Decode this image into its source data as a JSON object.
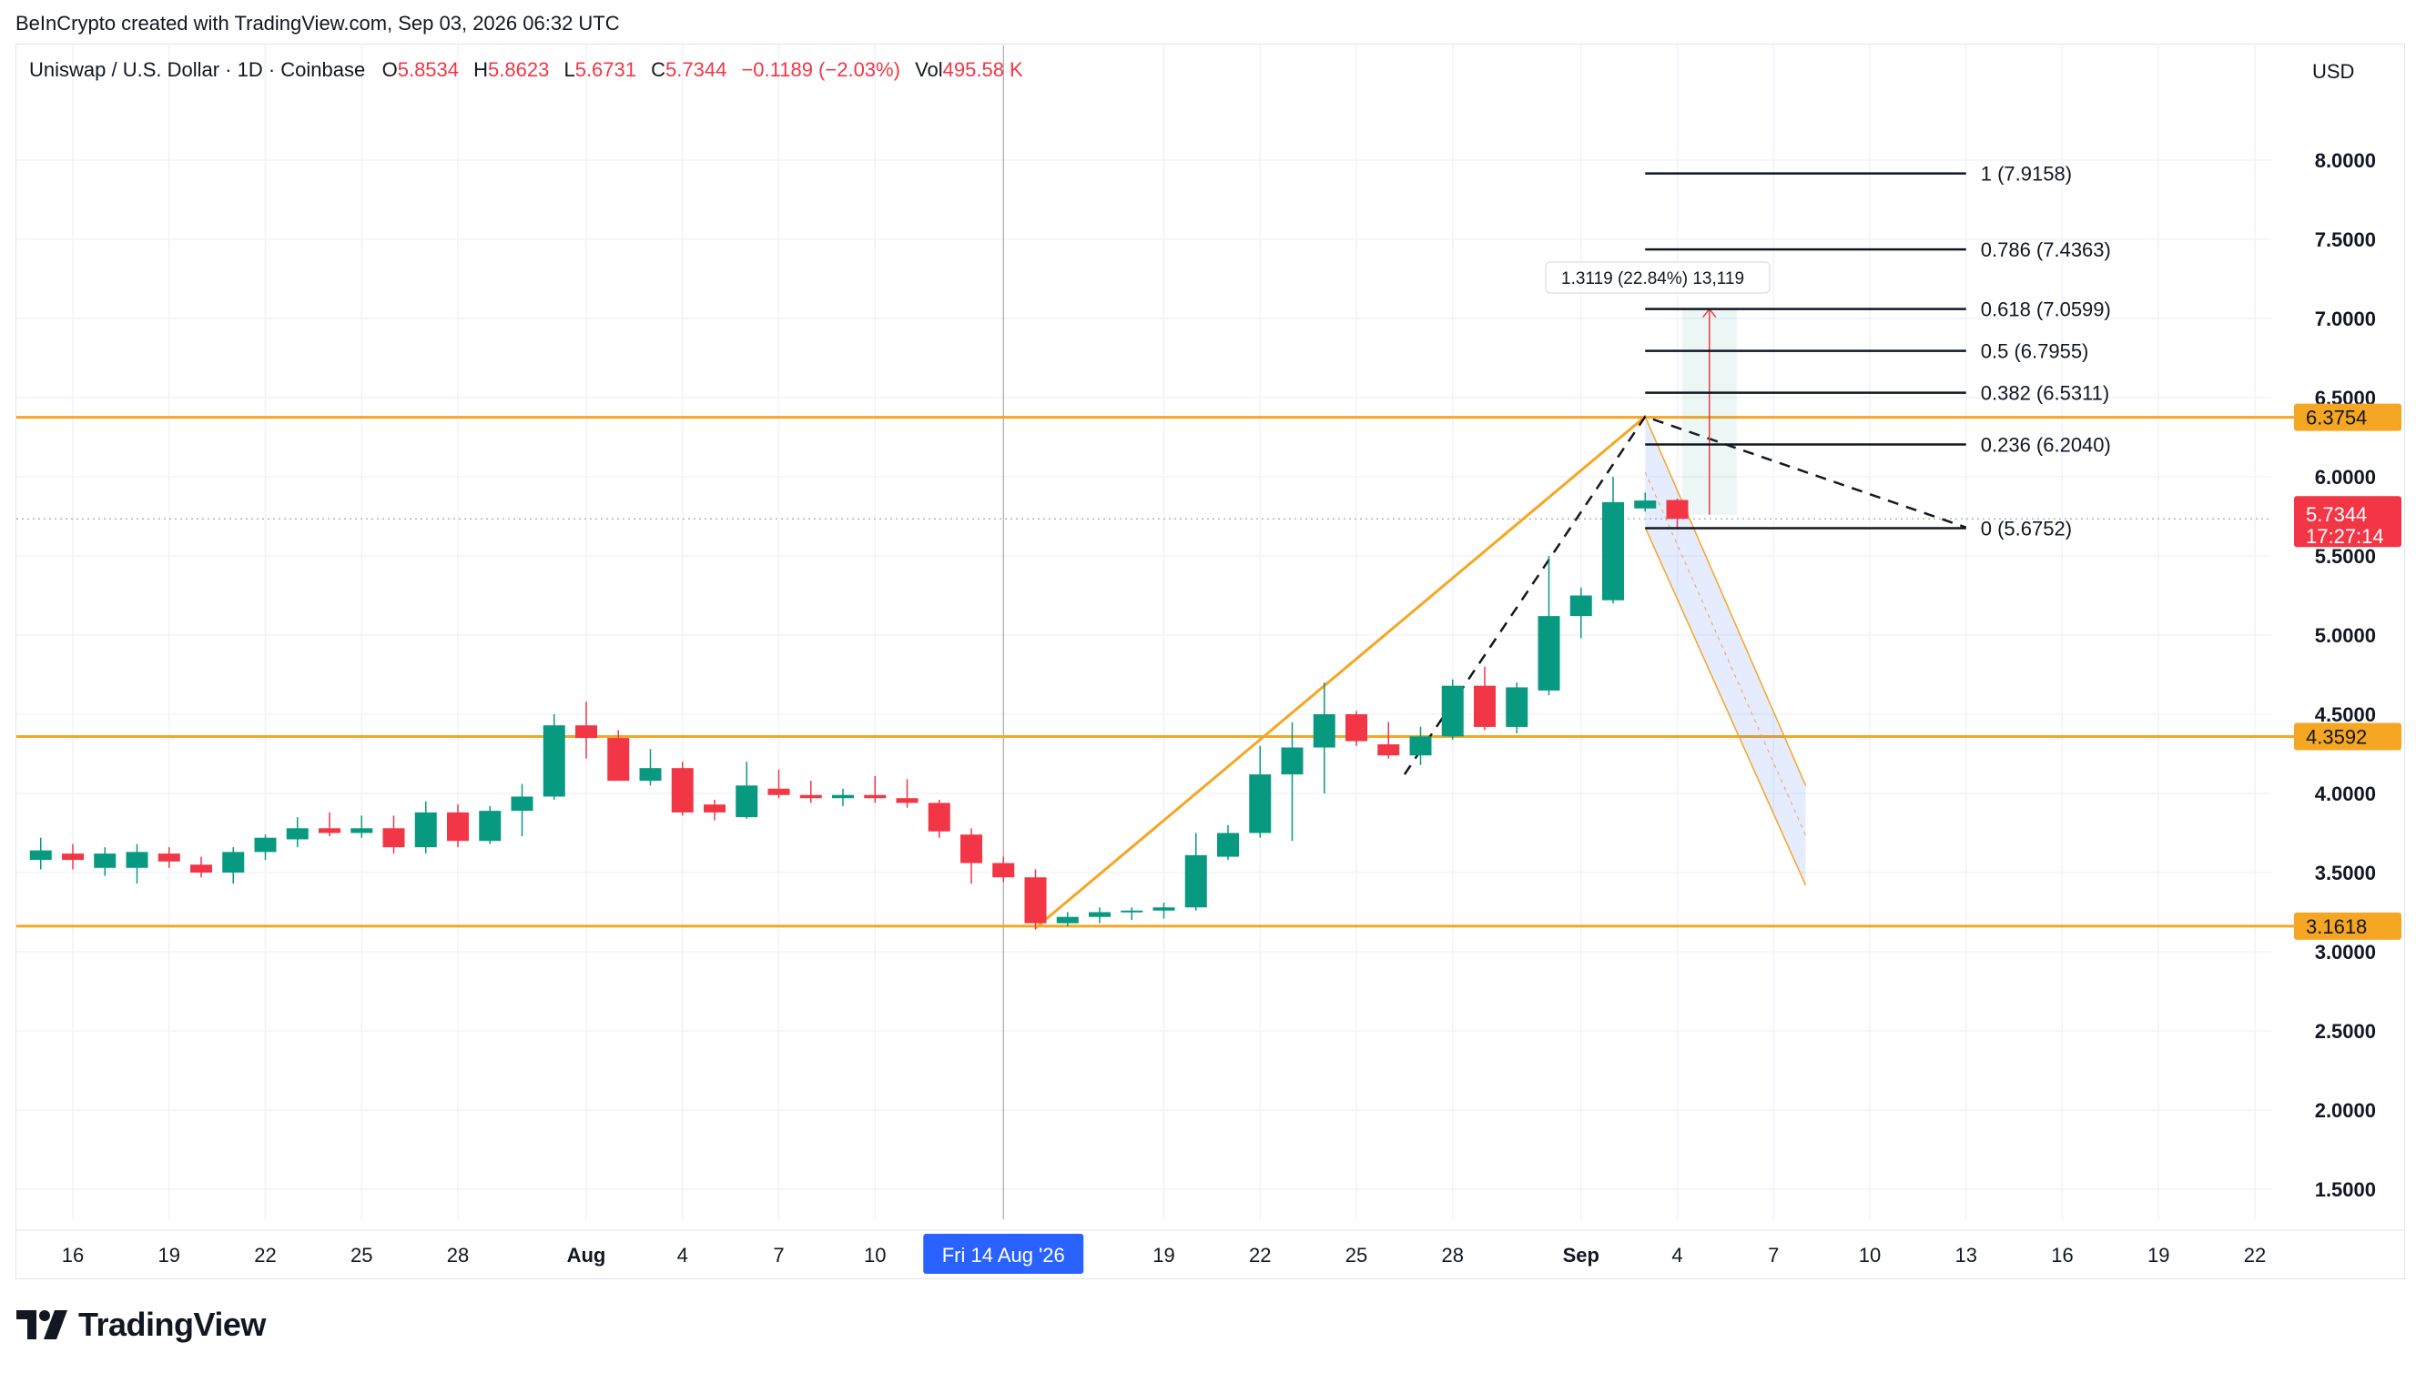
{
  "attribution": "BeInCrypto created with TradingView.com, Sep 03, 2026 06:32 UTC",
  "legend": {
    "symbol": "Uniswap / U.S. Dollar · 1D · Coinbase",
    "o_label": "O",
    "o_value": "5.8534",
    "h_label": "H",
    "h_value": "5.8623",
    "l_label": "L",
    "l_value": "5.6731",
    "c_label": "C",
    "c_value": "5.7344",
    "change": "−0.1189 (−2.03%)",
    "vol_label": "Vol",
    "vol_value": "495.58 K"
  },
  "currency": "USD",
  "brand": {
    "name": "TradingView"
  },
  "colors": {
    "up": "#089981",
    "down": "#f23645",
    "level": "#f5a623",
    "crosshair_label": "#2962ff",
    "axis_text": "#131722"
  },
  "chart_data": {
    "type": "candlestick",
    "ylim": [
      1.2,
      8.3
    ],
    "y_ticks": [
      "1.5000",
      "2.0000",
      "2.5000",
      "3.0000",
      "3.5000",
      "4.0000",
      "4.5000",
      "5.0000",
      "5.5000",
      "6.0000",
      "6.5000",
      "7.0000",
      "7.5000",
      "8.0000"
    ],
    "x_tick_labels": [
      {
        "label": "16",
        "day": 0
      },
      {
        "label": "19",
        "day": 3
      },
      {
        "label": "22",
        "day": 6
      },
      {
        "label": "25",
        "day": 9
      },
      {
        "label": "28",
        "day": 12
      },
      {
        "label": "Aug",
        "day": 16
      },
      {
        "label": "4",
        "day": 19
      },
      {
        "label": "7",
        "day": 22
      },
      {
        "label": "10",
        "day": 25
      },
      {
        "label": "19",
        "day": 34
      },
      {
        "label": "22",
        "day": 37
      },
      {
        "label": "25",
        "day": 40
      },
      {
        "label": "28",
        "day": 43
      },
      {
        "label": "Sep",
        "day": 47
      },
      {
        "label": "4",
        "day": 50
      },
      {
        "label": "7",
        "day": 53
      },
      {
        "label": "10",
        "day": 56
      },
      {
        "label": "13",
        "day": 59
      },
      {
        "label": "16",
        "day": 62
      },
      {
        "label": "19",
        "day": 65
      },
      {
        "label": "22",
        "day": 68
      }
    ],
    "crosshair": {
      "label": "Fri 14 Aug '26",
      "day": 29
    },
    "candles": [
      {
        "d": -2,
        "o": 3.58,
        "h": 3.7,
        "l": 3.5,
        "c": 3.65
      },
      {
        "d": -1,
        "o": 3.58,
        "h": 3.72,
        "l": 3.52,
        "c": 3.64
      },
      {
        "d": 0,
        "o": 3.62,
        "h": 3.68,
        "l": 3.52,
        "c": 3.58
      },
      {
        "d": 1,
        "o": 3.53,
        "h": 3.66,
        "l": 3.48,
        "c": 3.62
      },
      {
        "d": 2,
        "o": 3.53,
        "h": 3.68,
        "l": 3.43,
        "c": 3.63
      },
      {
        "d": 3,
        "o": 3.62,
        "h": 3.66,
        "l": 3.53,
        "c": 3.57
      },
      {
        "d": 4,
        "o": 3.55,
        "h": 3.6,
        "l": 3.47,
        "c": 3.5
      },
      {
        "d": 5,
        "o": 3.5,
        "h": 3.66,
        "l": 3.43,
        "c": 3.63
      },
      {
        "d": 6,
        "o": 3.63,
        "h": 3.74,
        "l": 3.58,
        "c": 3.72
      },
      {
        "d": 7,
        "o": 3.71,
        "h": 3.85,
        "l": 3.66,
        "c": 3.78
      },
      {
        "d": 8,
        "o": 3.78,
        "h": 3.88,
        "l": 3.73,
        "c": 3.75
      },
      {
        "d": 9,
        "o": 3.75,
        "h": 3.86,
        "l": 3.72,
        "c": 3.78
      },
      {
        "d": 10,
        "o": 3.78,
        "h": 3.86,
        "l": 3.62,
        "c": 3.66
      },
      {
        "d": 11,
        "o": 3.66,
        "h": 3.95,
        "l": 3.62,
        "c": 3.88
      },
      {
        "d": 12,
        "o": 3.88,
        "h": 3.93,
        "l": 3.66,
        "c": 3.7
      },
      {
        "d": 13,
        "o": 3.7,
        "h": 3.92,
        "l": 3.68,
        "c": 3.89
      },
      {
        "d": 14,
        "o": 3.89,
        "h": 4.06,
        "l": 3.73,
        "c": 3.98
      },
      {
        "d": 15,
        "o": 3.98,
        "h": 4.5,
        "l": 3.96,
        "c": 4.43
      },
      {
        "d": 16,
        "o": 4.43,
        "h": 4.58,
        "l": 4.22,
        "c": 4.35
      },
      {
        "d": 17,
        "o": 4.35,
        "h": 4.4,
        "l": 4.08,
        "c": 4.08
      },
      {
        "d": 18,
        "o": 4.08,
        "h": 4.28,
        "l": 4.05,
        "c": 4.16
      },
      {
        "d": 19,
        "o": 4.16,
        "h": 4.2,
        "l": 3.86,
        "c": 3.88
      },
      {
        "d": 20,
        "o": 3.93,
        "h": 3.96,
        "l": 3.83,
        "c": 3.88
      },
      {
        "d": 21,
        "o": 3.85,
        "h": 4.2,
        "l": 3.84,
        "c": 4.05
      },
      {
        "d": 22,
        "o": 4.03,
        "h": 4.15,
        "l": 3.97,
        "c": 3.99
      },
      {
        "d": 23,
        "o": 3.99,
        "h": 4.08,
        "l": 3.94,
        "c": 3.97
      },
      {
        "d": 24,
        "o": 3.97,
        "h": 4.03,
        "l": 3.92,
        "c": 3.99
      },
      {
        "d": 25,
        "o": 3.99,
        "h": 4.11,
        "l": 3.94,
        "c": 3.97
      },
      {
        "d": 26,
        "o": 3.97,
        "h": 4.09,
        "l": 3.91,
        "c": 3.94
      },
      {
        "d": 27,
        "o": 3.94,
        "h": 3.96,
        "l": 3.72,
        "c": 3.76
      },
      {
        "d": 28,
        "o": 3.74,
        "h": 3.78,
        "l": 3.43,
        "c": 3.56
      },
      {
        "d": 29,
        "o": 3.56,
        "h": 3.6,
        "l": 3.44,
        "c": 3.47
      },
      {
        "d": 30,
        "o": 3.47,
        "h": 3.52,
        "l": 3.14,
        "c": 3.18
      },
      {
        "d": 31,
        "o": 3.18,
        "h": 3.25,
        "l": 3.16,
        "c": 3.22
      },
      {
        "d": 32,
        "o": 3.22,
        "h": 3.28,
        "l": 3.18,
        "c": 3.25
      },
      {
        "d": 33,
        "o": 3.25,
        "h": 3.28,
        "l": 3.2,
        "c": 3.26
      },
      {
        "d": 34,
        "o": 3.26,
        "h": 3.31,
        "l": 3.21,
        "c": 3.28
      },
      {
        "d": 35,
        "o": 3.28,
        "h": 3.75,
        "l": 3.26,
        "c": 3.61
      },
      {
        "d": 36,
        "o": 3.6,
        "h": 3.8,
        "l": 3.58,
        "c": 3.75
      },
      {
        "d": 37,
        "o": 3.75,
        "h": 4.3,
        "l": 3.72,
        "c": 4.12
      },
      {
        "d": 38,
        "o": 4.12,
        "h": 4.45,
        "l": 3.7,
        "c": 4.29
      },
      {
        "d": 39,
        "o": 4.29,
        "h": 4.7,
        "l": 4.0,
        "c": 4.5
      },
      {
        "d": 40,
        "o": 4.5,
        "h": 4.52,
        "l": 4.3,
        "c": 4.33
      },
      {
        "d": 41,
        "o": 4.31,
        "h": 4.45,
        "l": 4.22,
        "c": 4.24
      },
      {
        "d": 42,
        "o": 4.24,
        "h": 4.42,
        "l": 4.18,
        "c": 4.36
      },
      {
        "d": 43,
        "o": 4.36,
        "h": 4.72,
        "l": 4.34,
        "c": 4.68
      },
      {
        "d": 44,
        "o": 4.68,
        "h": 4.8,
        "l": 4.4,
        "c": 4.42
      },
      {
        "d": 45,
        "o": 4.42,
        "h": 4.7,
        "l": 4.38,
        "c": 4.67
      },
      {
        "d": 46,
        "o": 4.65,
        "h": 5.5,
        "l": 4.62,
        "c": 5.12
      },
      {
        "d": 47,
        "o": 5.12,
        "h": 5.3,
        "l": 4.98,
        "c": 5.25
      },
      {
        "d": 48,
        "o": 5.22,
        "h": 6.0,
        "l": 5.2,
        "c": 5.84
      },
      {
        "d": 49,
        "o": 5.8,
        "h": 5.9,
        "l": 5.78,
        "c": 5.85
      },
      {
        "d": 50,
        "o": 5.8534,
        "h": 5.8623,
        "l": 5.6731,
        "c": 5.7344
      }
    ],
    "horizontal_levels": [
      {
        "value": 6.3754,
        "label": "6.3754"
      },
      {
        "value": 4.3592,
        "label": "4.3592"
      },
      {
        "value": 3.1618,
        "label": "3.1618"
      }
    ],
    "last_price": {
      "value": 5.7344,
      "label": "5.7344",
      "countdown": "17:27:14"
    },
    "fibonacci": [
      {
        "value": 7.9158,
        "label": "1 (7.9158)"
      },
      {
        "value": 7.4363,
        "label": "0.786 (7.4363)"
      },
      {
        "value": 7.0599,
        "label": "0.618 (7.0599)"
      },
      {
        "value": 6.7955,
        "label": "0.5 (6.7955)"
      },
      {
        "value": 6.5311,
        "label": "0.382 (6.5311)"
      },
      {
        "value": 6.204,
        "label": "0.236 (6.2040)"
      },
      {
        "value": 5.6752,
        "label": "0 (5.6752)"
      }
    ],
    "fib_range_days": [
      49,
      59
    ],
    "measure": {
      "label": "1.3119 (22.84%) 13,119",
      "day": 51,
      "from": 5.76,
      "to": 7.06
    },
    "channel_lines": [
      {
        "from": {
          "day": 30,
          "v": 3.15
        },
        "to": {
          "day": 49,
          "v": 6.38
        }
      }
    ],
    "channel_projection": {
      "top_start": {
        "day": 49,
        "v": 6.38
      },
      "top_end": {
        "day": 54,
        "v": 4.05
      },
      "bottom_start": {
        "day": 49,
        "v": 5.68
      },
      "bottom_end": {
        "day": 54,
        "v": 3.42
      }
    },
    "dashed_path": [
      {
        "day": 41.5,
        "v": 4.12
      },
      {
        "day": 49,
        "v": 6.38
      },
      {
        "day": 59,
        "v": 5.68
      }
    ]
  }
}
